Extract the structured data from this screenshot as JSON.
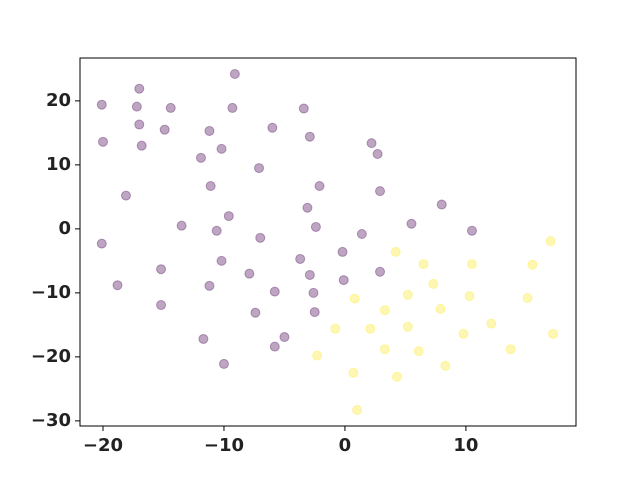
{
  "chart_data": {
    "type": "scatter",
    "xlim": [
      -21.9,
      19.1
    ],
    "ylim": [
      -30.8,
      26.7
    ],
    "xticks": [
      {
        "value": -20,
        "label": "−20"
      },
      {
        "value": -10,
        "label": "−10"
      },
      0,
      10
    ],
    "yticks": [
      {
        "value": -30,
        "label": "−30"
      },
      {
        "value": -20,
        "label": "−20"
      },
      {
        "value": -10,
        "label": "−10"
      },
      0,
      10,
      20
    ],
    "grid": false,
    "series": [
      {
        "color": "#440154",
        "alpha": 0.35,
        "x": [
          -20.1,
          -17.0,
          -9.1,
          -17.2,
          -14.4,
          -9.3,
          -3.4,
          -20.0,
          -17.0,
          -14.9,
          -11.2,
          -6.0,
          -2.9,
          2.2,
          2.7,
          -16.8,
          -10.2,
          -11.9,
          -7.1,
          -11.1,
          -2.1,
          2.9,
          -18.1,
          8.0,
          -9.6,
          -3.1,
          -13.5,
          -10.6,
          -2.4,
          5.5,
          1.4,
          10.5,
          -7.0,
          -20.1,
          -0.2,
          -3.7,
          -10.2,
          -15.2,
          -7.9,
          -2.9,
          2.9,
          -0.1,
          -18.8,
          -11.2,
          -5.8,
          -2.6,
          -15.2,
          -2.5,
          -7.4,
          -5.0,
          -11.7,
          -5.8,
          -10.0
        ],
        "y": [
          19.4,
          21.9,
          24.2,
          19.1,
          18.9,
          18.9,
          18.8,
          13.6,
          16.3,
          15.5,
          15.3,
          15.8,
          14.4,
          13.4,
          11.7,
          13.0,
          12.5,
          11.1,
          9.5,
          6.7,
          6.7,
          5.9,
          5.2,
          3.8,
          2.0,
          3.3,
          0.5,
          -0.3,
          0.3,
          0.8,
          -0.8,
          -0.3,
          -1.4,
          -2.3,
          -3.6,
          -4.7,
          -5.0,
          -6.3,
          -7.0,
          -7.2,
          -6.7,
          -8.0,
          -8.8,
          -8.9,
          -9.8,
          -10.0,
          -11.9,
          -13.0,
          -13.1,
          -16.9,
          -17.2,
          -18.4,
          -21.1
        ]
      },
      {
        "color": "#fde725",
        "alpha": 0.35,
        "x": [
          17.0,
          4.2,
          6.5,
          10.5,
          15.5,
          7.3,
          5.2,
          10.3,
          15.1,
          0.8,
          7.9,
          3.3,
          12.1,
          5.2,
          -0.8,
          2.1,
          9.8,
          17.2,
          13.7,
          3.3,
          6.1,
          -2.3,
          8.3,
          0.7,
          4.3,
          1.0
        ],
        "y": [
          -1.9,
          -3.6,
          -5.5,
          -5.5,
          -5.6,
          -8.6,
          -10.3,
          -10.5,
          -10.8,
          -10.9,
          -12.5,
          -12.7,
          -14.8,
          -15.3,
          -15.6,
          -15.6,
          -16.4,
          -16.4,
          -18.8,
          -18.8,
          -19.1,
          -19.8,
          -21.4,
          -22.5,
          -23.1,
          -28.3
        ]
      }
    ]
  }
}
